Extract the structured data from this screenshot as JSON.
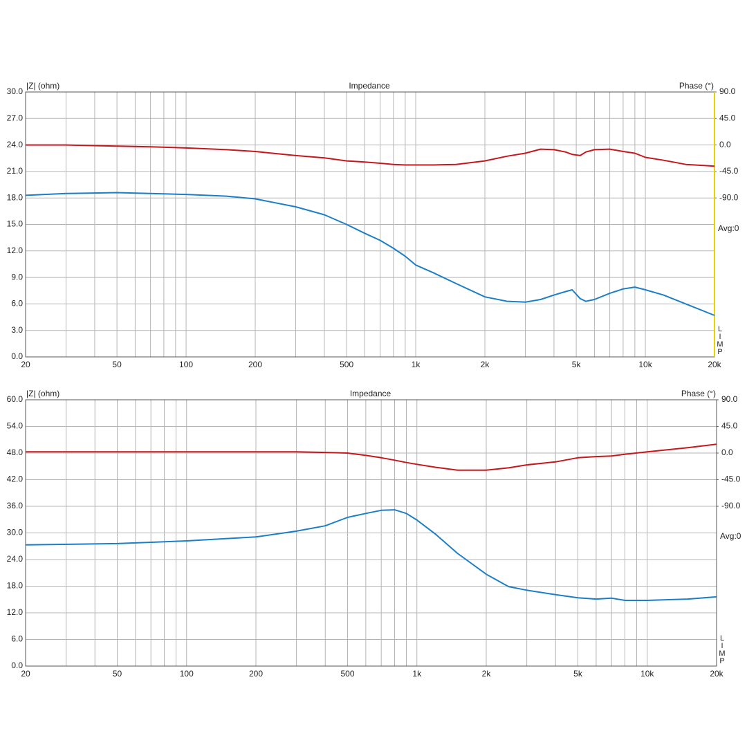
{
  "chart_data": [
    {
      "type": "line",
      "title": "Impedance",
      "y_label": "|Z| (ohm)",
      "y2_label": "Phase (°)",
      "annotations": [
        "Avg:0",
        "LIMP"
      ],
      "log_x": true,
      "grid": true,
      "x": [
        20,
        30,
        50,
        70,
        100,
        150,
        200,
        300,
        400,
        500,
        600,
        700,
        800,
        900,
        1000,
        1200,
        1500,
        2000,
        2500,
        3000,
        3500,
        4000,
        4500,
        4800,
        5200,
        5500,
        6000,
        7000,
        8000,
        9000,
        10000,
        12000,
        15000,
        20000
      ],
      "series": [
        {
          "color": "#1a7ec8",
          "values": [
            18.3,
            18.5,
            18.6,
            18.5,
            18.4,
            18.2,
            17.9,
            17.0,
            16.1,
            15.0,
            14.0,
            13.2,
            12.3,
            11.4,
            10.4,
            9.5,
            8.3,
            6.8,
            6.3,
            6.2,
            6.5,
            7.0,
            7.4,
            7.6,
            6.6,
            6.3,
            6.5,
            7.2,
            7.7,
            7.9,
            7.6,
            7.0,
            6.0,
            4.7
          ]
        },
        {
          "color": "#c8161d",
          "axis": "y2",
          "values": [
            0,
            0,
            -2,
            -3,
            -5,
            -8,
            -11,
            -18,
            -22,
            -27,
            -29,
            -31,
            -33,
            -34,
            -34,
            -34,
            -33,
            -27,
            -19,
            -14,
            -7,
            -8,
            -12,
            -16,
            -18,
            -12,
            -8,
            -7,
            -11,
            -14,
            -21,
            -26,
            -33,
            -36
          ]
        }
      ],
      "xlim": [
        20,
        20000
      ],
      "xticks": [
        20,
        50,
        100,
        200,
        500,
        {
          "value": 1000,
          "label": "1k"
        },
        {
          "value": 2000,
          "label": "2k"
        },
        {
          "value": 5000,
          "label": "5k"
        },
        {
          "value": 10000,
          "label": "10k"
        },
        {
          "value": 20000,
          "label": "20k"
        }
      ],
      "xminor": [
        30,
        40,
        60,
        70,
        80,
        90,
        300,
        400,
        600,
        700,
        800,
        900,
        3000,
        4000,
        6000,
        7000,
        8000,
        9000
      ],
      "ylim": [
        0,
        30
      ],
      "yticks": [
        {
          "value": 0,
          "label": "0.0"
        },
        {
          "value": 3,
          "label": "3.0"
        },
        {
          "value": 6,
          "label": "6.0"
        },
        {
          "value": 9,
          "label": "9.0"
        },
        {
          "value": 12,
          "label": "12.0"
        },
        {
          "value": 15,
          "label": "15.0"
        },
        {
          "value": 18,
          "label": "18.0"
        },
        {
          "value": 21,
          "label": "21.0"
        },
        {
          "value": 24,
          "label": "24.0"
        },
        {
          "value": 27,
          "label": "27.0"
        },
        {
          "value": 30,
          "label": "30.0"
        }
      ],
      "y2lim": [
        -360,
        90
      ],
      "y2ticks": [
        {
          "value": 90,
          "label": "90.0"
        },
        {
          "value": 45,
          "label": "45.0"
        },
        {
          "value": 0,
          "label": "0.0"
        },
        {
          "value": -45,
          "label": "-45.0"
        },
        {
          "value": -90,
          "label": "-90.0"
        }
      ]
    },
    {
      "type": "line",
      "title": "Impedance",
      "y_label": "|Z| (ohm)",
      "y2_label": "Phase (°)",
      "annotations": [
        "Avg:0",
        "LIMP"
      ],
      "log_x": true,
      "grid": true,
      "x": [
        20,
        50,
        100,
        200,
        300,
        400,
        500,
        600,
        700,
        800,
        900,
        1000,
        1200,
        1500,
        2000,
        2500,
        3000,
        4000,
        5000,
        6000,
        7000,
        8000,
        10000,
        15000,
        20000
      ],
      "series": [
        {
          "color": "#1a7ec8",
          "values": [
            27.3,
            27.6,
            28.2,
            29.1,
            30.4,
            31.6,
            33.5,
            34.4,
            35.1,
            35.2,
            34.4,
            32.9,
            29.8,
            25.4,
            20.7,
            17.9,
            17.1,
            16.1,
            15.4,
            15.1,
            15.3,
            14.8,
            14.8,
            15.1,
            15.6
          ]
        },
        {
          "color": "#c8161d",
          "axis": "y2",
          "values": [
            2,
            2,
            2,
            2,
            2,
            1,
            0,
            -4,
            -8,
            -12,
            -16,
            -19,
            -24,
            -29,
            -29,
            -25,
            -20,
            -15,
            -8,
            -6,
            -5,
            -2,
            2,
            9,
            15
          ]
        }
      ],
      "xlim": [
        20,
        20000
      ],
      "xticks": [
        20,
        50,
        100,
        200,
        500,
        {
          "value": 1000,
          "label": "1k"
        },
        {
          "value": 2000,
          "label": "2k"
        },
        {
          "value": 5000,
          "label": "5k"
        },
        {
          "value": 10000,
          "label": "10k"
        },
        {
          "value": 20000,
          "label": "20k"
        }
      ],
      "xminor": [
        30,
        40,
        60,
        70,
        80,
        90,
        300,
        400,
        600,
        700,
        800,
        900,
        3000,
        4000,
        6000,
        7000,
        8000,
        9000
      ],
      "ylim": [
        0,
        60
      ],
      "yticks": [
        {
          "value": 0,
          "label": "0.0"
        },
        {
          "value": 6,
          "label": "6.0"
        },
        {
          "value": 12,
          "label": "12.0"
        },
        {
          "value": 18,
          "label": "18.0"
        },
        {
          "value": 24,
          "label": "24.0"
        },
        {
          "value": 30,
          "label": "30.0"
        },
        {
          "value": 36,
          "label": "36.0"
        },
        {
          "value": 42,
          "label": "42.0"
        },
        {
          "value": 48,
          "label": "48.0"
        },
        {
          "value": 54,
          "label": "54.0"
        },
        {
          "value": 60,
          "label": "60.0"
        }
      ],
      "y2lim": [
        -360,
        90
      ],
      "y2ticks": [
        {
          "value": 90,
          "label": "90.0"
        },
        {
          "value": 45,
          "label": "45.0"
        },
        {
          "value": 0,
          "label": "0.0"
        },
        {
          "value": -45,
          "label": "-45.0"
        },
        {
          "value": -90,
          "label": "-90.0"
        }
      ]
    }
  ]
}
